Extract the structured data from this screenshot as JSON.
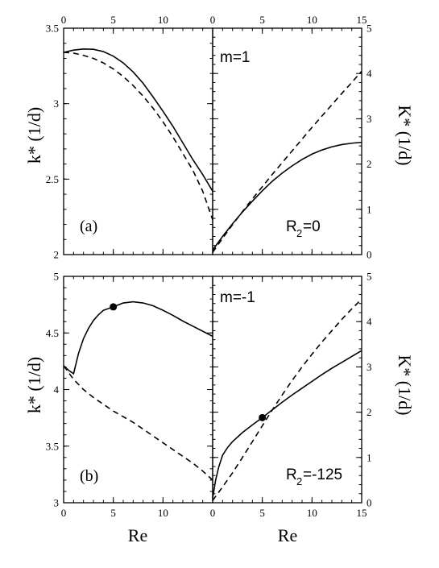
{
  "chart_data": [
    {
      "type": "line",
      "panel": "a-left",
      "label": "(a)",
      "xlabel": "Re",
      "ylabel": "k* (1/d)",
      "xlim": [
        0,
        15
      ],
      "ylim": [
        2,
        3.5
      ],
      "x_ticks": [
        0,
        5,
        10
      ],
      "y_ticks": [
        2,
        2.5,
        3,
        3.5
      ],
      "y_tick_labels": [
        "2",
        "2.5",
        "3",
        "3.5"
      ],
      "series": [
        {
          "style": "solid",
          "x": [
            0,
            1,
            2,
            3,
            4,
            5,
            6,
            7,
            8,
            9,
            10,
            11,
            12,
            13,
            14,
            15
          ],
          "y": [
            3.34,
            3.355,
            3.362,
            3.36,
            3.345,
            3.315,
            3.27,
            3.21,
            3.135,
            3.045,
            2.95,
            2.85,
            2.74,
            2.63,
            2.53,
            2.42
          ]
        },
        {
          "style": "dashed",
          "x": [
            0,
            1,
            2,
            3,
            4,
            5,
            6,
            7,
            8,
            9,
            10,
            11,
            12,
            13,
            14,
            15
          ],
          "y": [
            3.34,
            3.335,
            3.32,
            3.3,
            3.27,
            3.23,
            3.18,
            3.12,
            3.05,
            2.97,
            2.88,
            2.78,
            2.67,
            2.56,
            2.42,
            2.23
          ]
        }
      ]
    },
    {
      "type": "line",
      "panel": "a-right",
      "annotations": [
        "m=1",
        "R",
        "2",
        "=0"
      ],
      "xlabel": "",
      "ylabel": "K* (1/d)",
      "xlim": [
        0,
        15
      ],
      "ylim": [
        0,
        5
      ],
      "x_ticks": [
        0,
        5,
        10,
        15
      ],
      "y_ticks": [
        0,
        1,
        2,
        3,
        4,
        5
      ],
      "y_tick_labels": [
        "0",
        "1",
        "2",
        "3",
        "4",
        "5"
      ],
      "series": [
        {
          "style": "solid",
          "x": [
            0,
            1,
            2,
            3,
            4,
            5,
            6,
            7,
            8,
            9,
            10,
            11,
            12,
            13,
            14,
            15
          ],
          "y": [
            0.1,
            0.4,
            0.68,
            0.94,
            1.18,
            1.41,
            1.62,
            1.8,
            1.96,
            2.1,
            2.22,
            2.31,
            2.38,
            2.43,
            2.46,
            2.48
          ]
        },
        {
          "style": "dashed",
          "x": [
            0,
            1,
            2,
            3,
            4,
            5,
            6,
            7,
            8,
            9,
            10,
            11,
            12,
            13,
            14,
            15
          ],
          "y": [
            0.05,
            0.36,
            0.66,
            0.95,
            1.23,
            1.5,
            1.77,
            2.03,
            2.29,
            2.55,
            2.81,
            3.06,
            3.31,
            3.56,
            3.8,
            4.05
          ]
        }
      ]
    },
    {
      "type": "line",
      "panel": "b-left",
      "label": "(b)",
      "xlabel": "Re",
      "ylabel": "k* (1/d)",
      "xlim": [
        0,
        15
      ],
      "ylim": [
        3,
        5
      ],
      "x_ticks": [
        0,
        5,
        10
      ],
      "y_ticks": [
        3,
        3.5,
        4,
        4.5,
        5
      ],
      "y_tick_labels": [
        "3",
        "3.5",
        "4",
        "4.5",
        "5"
      ],
      "series": [
        {
          "style": "solid",
          "x": [
            0,
            0.5,
            1,
            1.5,
            2,
            2.5,
            3,
            3.5,
            4,
            5,
            6,
            7,
            8,
            9,
            10,
            11,
            12,
            13,
            14,
            15
          ],
          "y": [
            4.21,
            4.17,
            4.14,
            4.32,
            4.45,
            4.54,
            4.61,
            4.66,
            4.7,
            4.73,
            4.765,
            4.775,
            4.765,
            4.74,
            4.7,
            4.655,
            4.605,
            4.56,
            4.515,
            4.47
          ]
        },
        {
          "style": "dashed",
          "x": [
            0,
            1,
            2,
            3,
            4,
            5,
            6,
            7,
            8,
            9,
            10,
            11,
            12,
            13,
            14,
            15
          ],
          "y": [
            4.21,
            4.09,
            4.0,
            3.93,
            3.87,
            3.81,
            3.76,
            3.71,
            3.65,
            3.59,
            3.53,
            3.47,
            3.41,
            3.35,
            3.28,
            3.2
          ]
        }
      ],
      "markers": [
        {
          "x": 5,
          "y": 4.73
        }
      ]
    },
    {
      "type": "line",
      "panel": "b-right",
      "annotations": [
        "m=-1",
        "R",
        "2",
        "=-125"
      ],
      "xlabel": "Re",
      "ylabel": "K* (1/d)",
      "xlim": [
        0,
        15
      ],
      "ylim": [
        0,
        5
      ],
      "x_ticks": [
        0,
        5,
        10,
        15
      ],
      "y_ticks": [
        0,
        1,
        2,
        3,
        4,
        5
      ],
      "y_tick_labels": [
        "0",
        "1",
        "2",
        "3",
        "4",
        "5"
      ],
      "series": [
        {
          "style": "solid",
          "x": [
            0,
            0.3,
            0.6,
            1,
            1.5,
            2,
            3,
            4,
            5,
            6,
            7,
            8,
            9,
            10,
            11,
            12,
            13,
            14,
            15
          ],
          "y": [
            0.1,
            0.5,
            0.78,
            1.05,
            1.22,
            1.35,
            1.55,
            1.72,
            1.88,
            2.05,
            2.22,
            2.38,
            2.53,
            2.68,
            2.83,
            2.97,
            3.1,
            3.23,
            3.36
          ]
        },
        {
          "style": "dashed",
          "x": [
            0,
            1,
            2,
            3,
            4,
            5,
            6,
            7,
            8,
            9,
            10,
            11,
            12,
            13,
            14,
            15
          ],
          "y": [
            0.05,
            0.35,
            0.66,
            1.0,
            1.35,
            1.7,
            2.05,
            2.38,
            2.7,
            3.0,
            3.28,
            3.55,
            3.8,
            4.05,
            4.28,
            4.5
          ]
        }
      ],
      "markers": [
        {
          "x": 5,
          "y": 1.88
        }
      ]
    }
  ]
}
